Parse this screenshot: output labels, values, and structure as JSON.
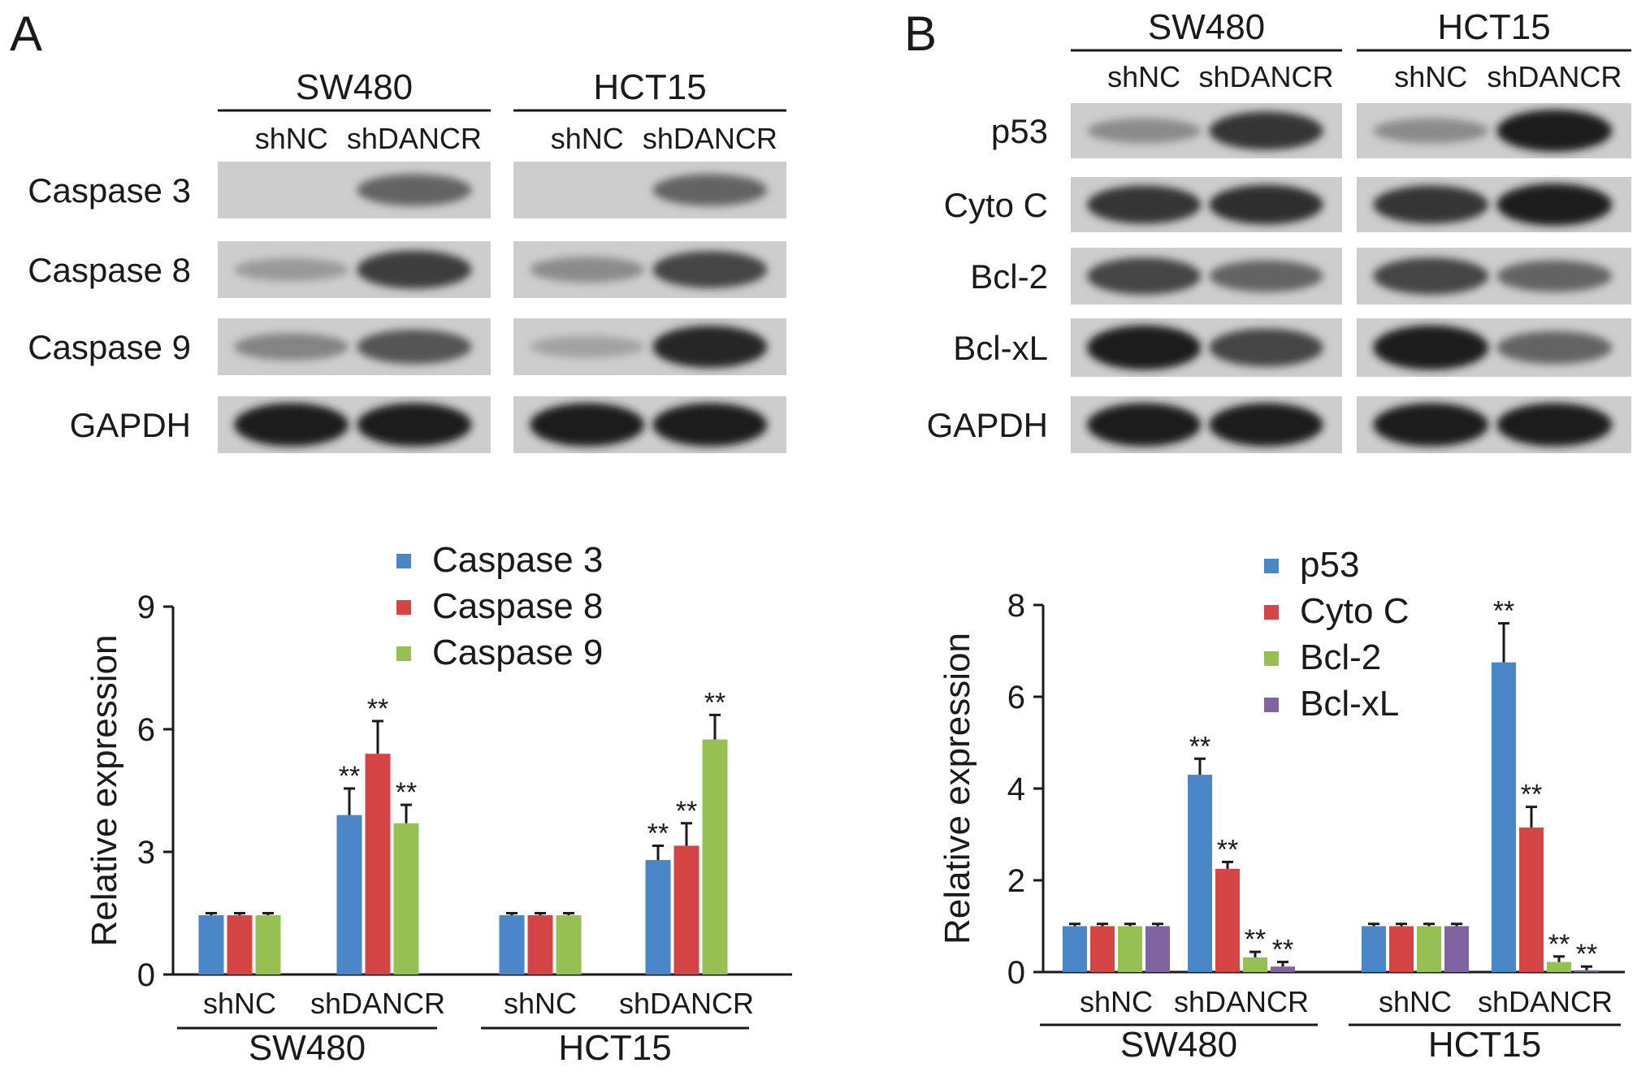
{
  "panels": [
    {
      "letter": "A",
      "blot": {
        "groups": [
          {
            "name": "SW480",
            "lanes": [
              "shNC",
              "shDANCR"
            ]
          },
          {
            "name": "HCT15",
            "lanes": [
              "shNC",
              "shDANCR"
            ]
          }
        ],
        "rows": [
          {
            "label": "Caspase 3",
            "intensity": [
              [
                0.0,
                0.55
              ],
              [
                0.0,
                0.55
              ]
            ]
          },
          {
            "label": "Caspase 8",
            "intensity": [
              [
                0.2,
                0.8
              ],
              [
                0.3,
                0.75
              ]
            ]
          },
          {
            "label": "Caspase 9",
            "intensity": [
              [
                0.35,
                0.65
              ],
              [
                0.15,
                0.95
              ]
            ]
          },
          {
            "label": "GAPDH",
            "intensity": [
              [
                1.0,
                1.0
              ],
              [
                1.0,
                1.0
              ]
            ]
          }
        ]
      }
    },
    {
      "letter": "B",
      "blot": {
        "groups": [
          {
            "name": "SW480",
            "lanes": [
              "shNC",
              "shDANCR"
            ]
          },
          {
            "name": "HCT15",
            "lanes": [
              "shNC",
              "shDANCR"
            ]
          }
        ],
        "rows": [
          {
            "label": "p53",
            "intensity": [
              [
                0.3,
                0.85
              ],
              [
                0.3,
                1.0
              ]
            ]
          },
          {
            "label": "Cyto C",
            "intensity": [
              [
                0.85,
                0.9
              ],
              [
                0.85,
                1.0
              ]
            ]
          },
          {
            "label": "Bcl-2",
            "intensity": [
              [
                0.75,
                0.55
              ],
              [
                0.75,
                0.55
              ]
            ]
          },
          {
            "label": "Bcl-xL",
            "intensity": [
              [
                1.0,
                0.75
              ],
              [
                1.0,
                0.55
              ]
            ]
          },
          {
            "label": "GAPDH",
            "intensity": [
              [
                1.0,
                1.0
              ],
              [
                1.0,
                1.0
              ]
            ]
          }
        ]
      }
    }
  ],
  "chart_data": [
    {
      "type": "bar",
      "panel": "A",
      "title": "",
      "xlabel": "",
      "ylabel": "Relative expression",
      "ylim": [
        0,
        9
      ],
      "yticks": [
        0,
        3,
        6,
        9
      ],
      "groups": [
        "SW480",
        "HCT15"
      ],
      "categories": [
        "shNC",
        "shDANCR",
        "shNC",
        "shDANCR"
      ],
      "legend_position": "top",
      "series": [
        {
          "name": "Caspase 3",
          "color": "#4a86c8",
          "values": [
            1.45,
            3.9,
            1.45,
            2.8
          ],
          "errors": [
            0.05,
            0.65,
            0.05,
            0.35
          ],
          "marks": [
            "",
            "**",
            "",
            "**"
          ]
        },
        {
          "name": "Caspase 8",
          "color": "#d64545",
          "values": [
            1.45,
            5.4,
            1.45,
            3.15
          ],
          "errors": [
            0.05,
            0.8,
            0.05,
            0.55
          ],
          "marks": [
            "",
            "**",
            "",
            "**"
          ]
        },
        {
          "name": "Caspase 9",
          "color": "#96c051",
          "values": [
            1.45,
            3.7,
            1.45,
            5.75
          ],
          "errors": [
            0.05,
            0.45,
            0.05,
            0.6
          ],
          "marks": [
            "",
            "**",
            "",
            "**"
          ]
        }
      ]
    },
    {
      "type": "bar",
      "panel": "B",
      "title": "",
      "xlabel": "",
      "ylabel": "Relative expression",
      "ylim": [
        0,
        8
      ],
      "yticks": [
        0,
        2,
        4,
        6,
        8
      ],
      "groups": [
        "SW480",
        "HCT15"
      ],
      "categories": [
        "shNC",
        "shDANCR",
        "shNC",
        "shDANCR"
      ],
      "legend_position": "top",
      "series": [
        {
          "name": "p53",
          "color": "#4a86c8",
          "values": [
            1.0,
            4.3,
            1.0,
            6.75
          ],
          "errors": [
            0.05,
            0.35,
            0.05,
            0.85
          ],
          "marks": [
            "",
            "**",
            "",
            "**"
          ]
        },
        {
          "name": "Cyto C",
          "color": "#d64545",
          "values": [
            1.0,
            2.25,
            1.0,
            3.15
          ],
          "errors": [
            0.05,
            0.15,
            0.05,
            0.45
          ],
          "marks": [
            "",
            "**",
            "",
            "**"
          ]
        },
        {
          "name": "Bcl-2",
          "color": "#96c051",
          "values": [
            1.0,
            0.32,
            1.0,
            0.22
          ],
          "errors": [
            0.05,
            0.12,
            0.05,
            0.12
          ],
          "marks": [
            "",
            "**",
            "",
            "**"
          ]
        },
        {
          "name": "Bcl-xL",
          "color": "#8064a2",
          "values": [
            1.0,
            0.12,
            1.0,
            0.04
          ],
          "errors": [
            0.05,
            0.1,
            0.05,
            0.08
          ],
          "marks": [
            "",
            "**",
            "",
            "**"
          ]
        }
      ]
    }
  ]
}
